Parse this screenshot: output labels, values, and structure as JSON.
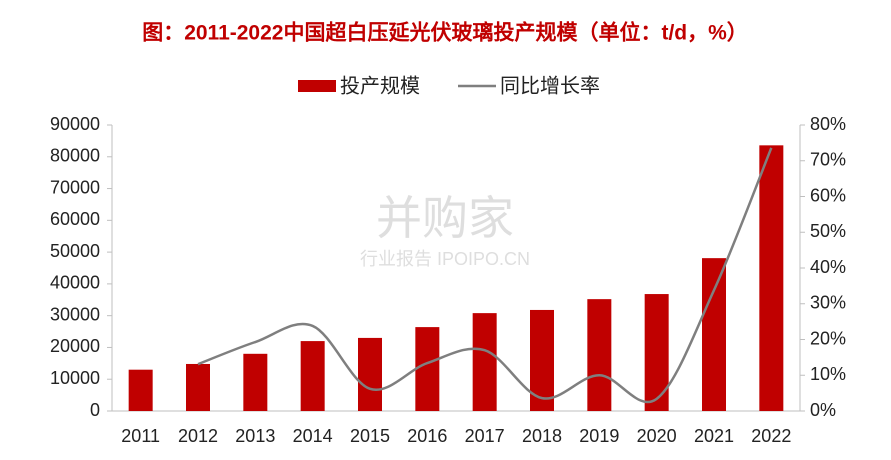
{
  "chart_data": {
    "type": "bar_line",
    "title": "图：2011-2022中国超白压延光伏玻璃投产规模（单位：t/d，%）",
    "watermark": "并购家",
    "watermark_sub": "行业报告 IPOIPO.CN",
    "categories": [
      "2011",
      "2012",
      "2013",
      "2014",
      "2015",
      "2016",
      "2017",
      "2018",
      "2019",
      "2020",
      "2021",
      "2022"
    ],
    "series": [
      {
        "name": "投产规模",
        "type": "bar",
        "color": "#c00000",
        "values": [
          13000,
          14800,
          18000,
          22000,
          23000,
          26400,
          30800,
          31800,
          35200,
          36800,
          48100,
          83600
        ]
      },
      {
        "name": "同比增长率",
        "type": "line",
        "axis": "y2",
        "color": "#7f7f7f",
        "values": [
          null,
          13.1,
          19.3,
          23.8,
          6.2,
          13.4,
          17,
          3.6,
          10,
          3.4,
          33.8,
          73.6
        ]
      }
    ],
    "ylim": [
      0,
      90000
    ],
    "yticks": [
      0,
      10000,
      20000,
      30000,
      40000,
      50000,
      60000,
      70000,
      80000,
      90000
    ],
    "y2lim": [
      0,
      80
    ],
    "y2ticks": [
      {
        "value": 0,
        "label": "0%"
      },
      {
        "value": 10,
        "label": "10%"
      },
      {
        "value": 20,
        "label": "20%"
      },
      {
        "value": 30,
        "label": "30%"
      },
      {
        "value": 40,
        "label": "40%"
      },
      {
        "value": 50,
        "label": "50%"
      },
      {
        "value": 60,
        "label": "60%"
      },
      {
        "value": 70,
        "label": "70%"
      },
      {
        "value": 80,
        "label": "80%"
      }
    ],
    "legend": "top"
  }
}
